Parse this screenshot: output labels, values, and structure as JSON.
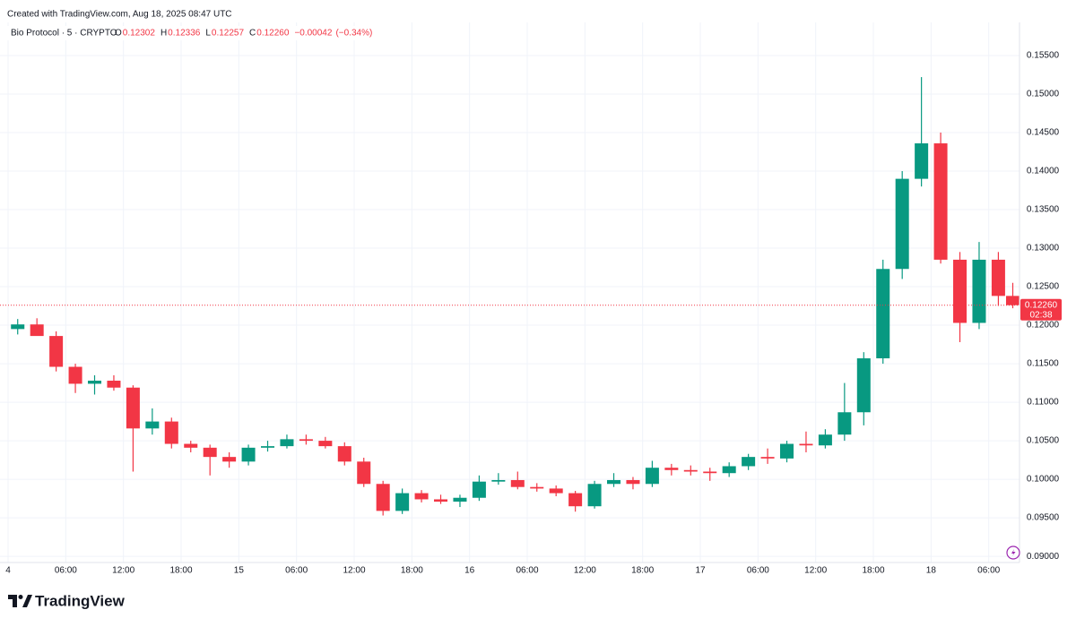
{
  "chart_data": {
    "type": "candlestick",
    "credit": "Created with TradingView.com, Aug 18, 2025 08:47 UTC",
    "symbol": "Bio Protocol · 5 · CRYPTO",
    "ohlc": [
      {
        "key": "O",
        "value": 0.12302
      },
      {
        "key": "H",
        "value": 0.12336
      },
      {
        "key": "L",
        "value": 0.12257
      },
      {
        "key": "C",
        "value": 0.1226
      }
    ],
    "ohlc_labels": [
      "0.12302",
      "0.12336",
      "0.12257",
      "0.12260"
    ],
    "change": {
      "value": -0.00042,
      "label": "−0.00042"
    },
    "change_pct": {
      "value": -0.34,
      "label": "(−0.34%)"
    },
    "last_price": {
      "value": 0.1226,
      "label": "0.12260"
    },
    "countdown": "02:38",
    "brand": "TradingView",
    "up_color": "#089981",
    "down_color": "#f23645",
    "grid": true,
    "xlim": [
      -0.84,
      105.2
    ],
    "ylim": [
      0.0892,
      0.1593
    ],
    "xticks": [
      {
        "value": 0,
        "label": "4"
      },
      {
        "value": 6,
        "label": "06:00"
      },
      {
        "value": 12,
        "label": "12:00"
      },
      {
        "value": 18,
        "label": "18:00"
      },
      {
        "value": 24,
        "label": "15"
      },
      {
        "value": 30,
        "label": "06:00"
      },
      {
        "value": 36,
        "label": "12:00"
      },
      {
        "value": 42,
        "label": "18:00"
      },
      {
        "value": 48,
        "label": "16"
      },
      {
        "value": 54,
        "label": "06:00"
      },
      {
        "value": 60,
        "label": "12:00"
      },
      {
        "value": 66,
        "label": "18:00"
      },
      {
        "value": 72,
        "label": "17"
      },
      {
        "value": 78,
        "label": "06:00"
      },
      {
        "value": 84,
        "label": "12:00"
      },
      {
        "value": 90,
        "label": "18:00"
      },
      {
        "value": 96,
        "label": "18"
      },
      {
        "value": 102,
        "label": "06:00"
      }
    ],
    "yticks": [
      {
        "value": 0.09,
        "label": "0.09000"
      },
      {
        "value": 0.095,
        "label": "0.09500"
      },
      {
        "value": 0.1,
        "label": "0.10000"
      },
      {
        "value": 0.105,
        "label": "0.10500"
      },
      {
        "value": 0.11,
        "label": "0.11000"
      },
      {
        "value": 0.115,
        "label": "0.11500"
      },
      {
        "value": 0.12,
        "label": "0.12000"
      },
      {
        "value": 0.125,
        "label": "0.12500"
      },
      {
        "value": 0.13,
        "label": "0.13000"
      },
      {
        "value": 0.135,
        "label": "0.13500"
      },
      {
        "value": 0.14,
        "label": "0.14000"
      },
      {
        "value": 0.145,
        "label": "0.14500"
      },
      {
        "value": 0.15,
        "label": "0.15000"
      },
      {
        "value": 0.155,
        "label": "0.15500"
      }
    ],
    "x": [
      1,
      3,
      5,
      7,
      9,
      11,
      13,
      15,
      17,
      19,
      21,
      23,
      25,
      27,
      29,
      31,
      33,
      35,
      37,
      39,
      41,
      43,
      45,
      47,
      49,
      51,
      53,
      55,
      57,
      59,
      61,
      63,
      65,
      67,
      69,
      71,
      73,
      75,
      77,
      79,
      81,
      83,
      85,
      87,
      89,
      91,
      93,
      95,
      97,
      99,
      101,
      103,
      104.5
    ],
    "open": [
      0.1195,
      0.1201,
      0.1186,
      0.1146,
      0.1124,
      0.1128,
      0.1119,
      0.1066,
      0.1075,
      0.1046,
      0.1041,
      0.1029,
      0.1023,
      0.1041,
      0.1043,
      0.1052,
      0.105,
      0.1043,
      0.1023,
      0.0994,
      0.0959,
      0.0982,
      0.0974,
      0.0971,
      0.0976,
      0.0997,
      0.0999,
      0.099,
      0.0988,
      0.0982,
      0.0965,
      0.0994,
      0.0999,
      0.0994,
      0.1015,
      0.1012,
      0.101,
      0.1008,
      0.1017,
      0.1029,
      0.1027,
      0.1046,
      0.1044,
      0.1058,
      0.1087,
      0.1157,
      0.1273,
      0.139,
      0.1436,
      0.1285,
      0.1203,
      0.1285,
      0.1238
    ],
    "high": [
      0.1208,
      0.1209,
      0.1192,
      0.115,
      0.1135,
      0.1135,
      0.1122,
      0.1092,
      0.108,
      0.105,
      0.1045,
      0.1035,
      0.1045,
      0.105,
      0.1058,
      0.1058,
      0.1055,
      0.1048,
      0.1028,
      0.0998,
      0.0988,
      0.0986,
      0.098,
      0.098,
      0.1005,
      0.1008,
      0.101,
      0.0995,
      0.0992,
      0.0985,
      0.0998,
      0.1008,
      0.1003,
      0.1024,
      0.102,
      0.1018,
      0.1015,
      0.1022,
      0.1033,
      0.104,
      0.105,
      0.1062,
      0.1065,
      0.1125,
      0.1165,
      0.1285,
      0.14,
      0.1522,
      0.145,
      0.1295,
      0.1308,
      0.1295,
      0.1255
    ],
    "low": [
      0.1188,
      0.119,
      0.114,
      0.1112,
      0.111,
      0.1115,
      0.101,
      0.1058,
      0.104,
      0.1035,
      0.1005,
      0.1015,
      0.1018,
      0.1036,
      0.104,
      0.1045,
      0.104,
      0.1018,
      0.099,
      0.0953,
      0.0955,
      0.097,
      0.0968,
      0.0964,
      0.0972,
      0.0993,
      0.0987,
      0.0984,
      0.0978,
      0.0958,
      0.0962,
      0.099,
      0.0987,
      0.099,
      0.1005,
      0.1005,
      0.0998,
      0.1003,
      0.1012,
      0.102,
      0.1022,
      0.1035,
      0.104,
      0.105,
      0.107,
      0.115,
      0.126,
      0.138,
      0.128,
      0.1178,
      0.1195,
      0.1225,
      0.1222
    ],
    "close": [
      0.1201,
      0.1186,
      0.1146,
      0.1124,
      0.1128,
      0.1119,
      0.1066,
      0.1075,
      0.1046,
      0.1041,
      0.1029,
      0.1023,
      0.1041,
      0.1043,
      0.1052,
      0.105,
      0.1043,
      0.1023,
      0.0994,
      0.0959,
      0.0982,
      0.0974,
      0.0971,
      0.0976,
      0.0997,
      0.0999,
      0.099,
      0.0988,
      0.0982,
      0.0965,
      0.0994,
      0.0999,
      0.0994,
      0.1015,
      0.1012,
      0.101,
      0.1008,
      0.1017,
      0.1029,
      0.1027,
      0.1046,
      0.1044,
      0.1058,
      0.1087,
      0.1157,
      0.1273,
      0.139,
      0.1436,
      0.1285,
      0.1203,
      0.1285,
      0.1238,
      0.1226
    ]
  }
}
